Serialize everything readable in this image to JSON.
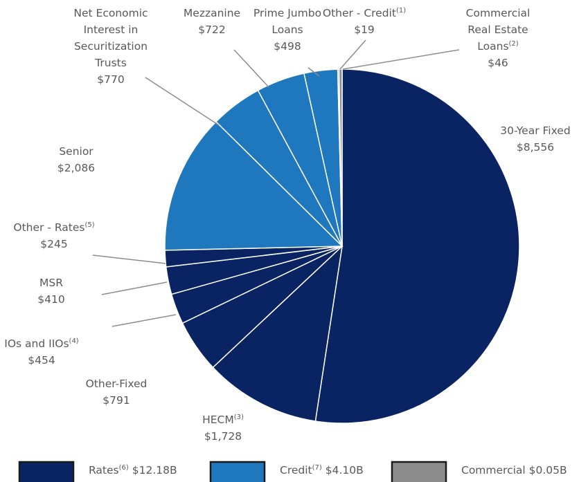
{
  "chart_data": {
    "type": "pie",
    "slices": [
      {
        "label": "30-Year Fixed",
        "sup": "",
        "value": 8556,
        "value_text": "$8,556",
        "group": "Rates"
      },
      {
        "label": "HECM",
        "sup": "(3)",
        "value": 1728,
        "value_text": "$1,728",
        "group": "Rates"
      },
      {
        "label": "Other-Fixed",
        "sup": "",
        "value": 791,
        "value_text": "$791",
        "group": "Rates"
      },
      {
        "label": "IOs and IIOs",
        "sup": "(4)",
        "value": 454,
        "value_text": "$454",
        "group": "Rates"
      },
      {
        "label": "MSR",
        "sup": "",
        "value": 410,
        "value_text": "$410",
        "group": "Rates"
      },
      {
        "label": "Other - Rates",
        "sup": "(5)",
        "value": 245,
        "value_text": "$245",
        "group": "Rates"
      },
      {
        "label": "Senior",
        "sup": "",
        "value": 2086,
        "value_text": "$2,086",
        "group": "Credit"
      },
      {
        "label": "Net Economic Interest in Securitization Trusts",
        "sup": "",
        "value": 770,
        "value_text": "$770",
        "group": "Credit"
      },
      {
        "label": "Mezzanine",
        "sup": "",
        "value": 722,
        "value_text": "$722",
        "group": "Credit"
      },
      {
        "label": "Prime Jumbo Loans",
        "sup": "",
        "value": 498,
        "value_text": "$498",
        "group": "Credit"
      },
      {
        "label": "Other - Credit",
        "sup": "(1)",
        "value": 19,
        "value_text": "$19",
        "group": "Credit"
      },
      {
        "label": "Commercial Real Estate Loans",
        "sup": "(2)",
        "value": 46,
        "value_text": "$46",
        "group": "Commercial"
      }
    ],
    "legend": [
      {
        "name": "Rates",
        "sup": "(6)",
        "total": "$12.18B"
      },
      {
        "name": "Credit",
        "sup": "(7)",
        "total": "$4.10B"
      },
      {
        "name": "Commercial",
        "sup": "",
        "total": "$0.05B"
      }
    ],
    "colors": {
      "Rates": "#0a2463",
      "Credit": "#1f77bd",
      "Commercial": "#8c8c8c"
    },
    "legend_placement": "bottom"
  }
}
